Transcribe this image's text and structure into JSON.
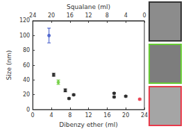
{
  "chart_data": {
    "type": "scatter",
    "x_label": "Dibenzy ether (ml)",
    "x2_label": "Squalane (ml)",
    "y_label": "Size (nm)",
    "xlim": [
      0,
      24
    ],
    "xticks": [
      0,
      4,
      8,
      12,
      16,
      20,
      24
    ],
    "x2lim": [
      24,
      0
    ],
    "x2ticks": [
      24,
      20,
      16,
      12,
      8,
      4,
      0
    ],
    "ylim": [
      0,
      120
    ],
    "yticks": [
      0,
      20,
      40,
      60,
      80,
      100,
      120
    ],
    "grid": false,
    "marker": "circle",
    "series": [
      {
        "color": "#1f1f1f",
        "x": [
          4.5,
          7,
          7.8,
          8.8,
          17.5,
          17.5,
          20
        ],
        "values": [
          47,
          26,
          15,
          20,
          22,
          17,
          18
        ],
        "errors": [
          2,
          2,
          1,
          1,
          1,
          1,
          1
        ]
      },
      {
        "color": "#3b55c8",
        "x": [
          3.5
        ],
        "values": [
          100
        ],
        "errors": [
          10
        ]
      },
      {
        "color": "#66cc33",
        "x": [
          5.5
        ],
        "values": [
          37
        ],
        "errors": [
          3
        ]
      },
      {
        "color": "#e8394a",
        "x": [
          23
        ],
        "values": [
          14
        ],
        "errors": [
          1
        ]
      }
    ]
  }
}
